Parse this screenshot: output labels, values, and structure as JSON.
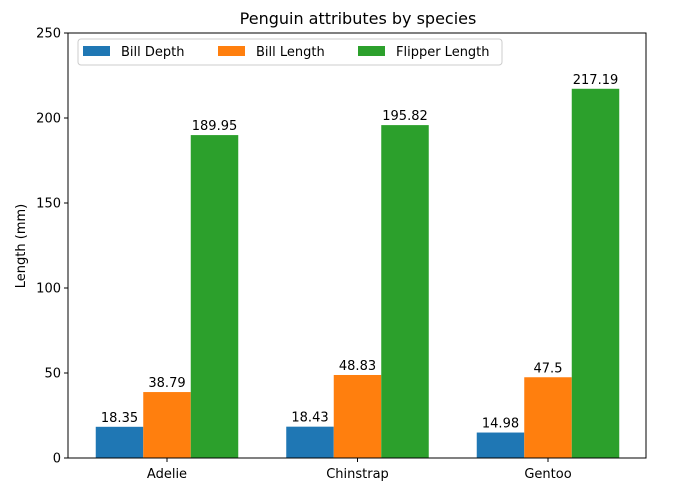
{
  "chart_data": {
    "type": "bar",
    "title": "Penguin attributes by species",
    "xlabel": "",
    "ylabel": "Length (mm)",
    "ylim": [
      0,
      250
    ],
    "yticks": [
      0,
      50,
      100,
      150,
      200,
      250
    ],
    "categories": [
      "Adelie",
      "Chinstrap",
      "Gentoo"
    ],
    "series": [
      {
        "name": "Bill Depth",
        "color": "#1f77b4",
        "values": [
          18.35,
          18.43,
          14.98
        ],
        "labels": [
          "18.35",
          "18.43",
          "14.98"
        ]
      },
      {
        "name": "Bill Length",
        "color": "#ff7f0e",
        "values": [
          38.79,
          48.83,
          47.5
        ],
        "labels": [
          "38.79",
          "48.83",
          "47.5"
        ]
      },
      {
        "name": "Flipper Length",
        "color": "#2ca02c",
        "values": [
          189.95,
          195.82,
          217.19
        ],
        "labels": [
          "189.95",
          "195.82",
          "217.19"
        ]
      }
    ],
    "legend": {
      "position": "top-left",
      "columns": 3
    },
    "grid": false
  }
}
